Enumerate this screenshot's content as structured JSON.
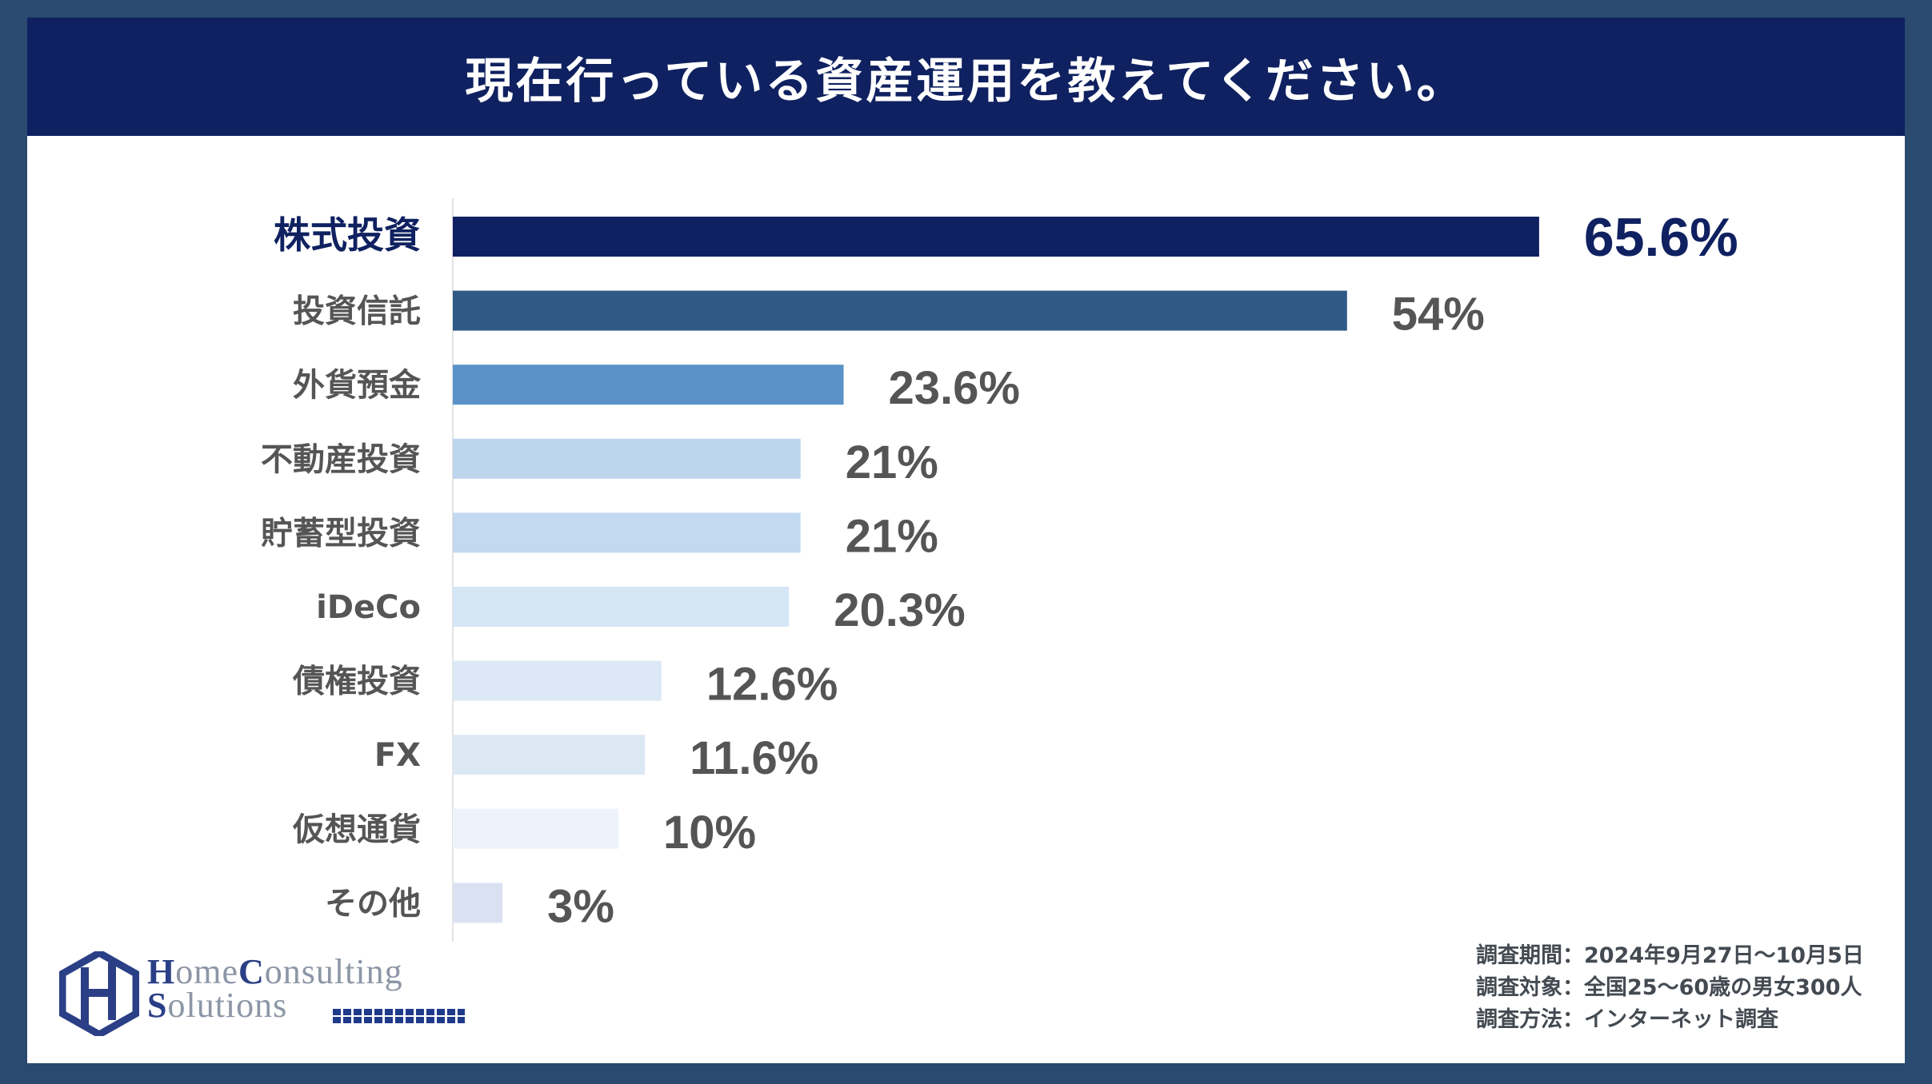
{
  "header": {
    "title": "現在行っている資産運用を教えてください。"
  },
  "chart_data": {
    "type": "bar",
    "orientation": "horizontal",
    "title": "現在行っている資産運用を教えてください。",
    "xlim": [
      0,
      100
    ],
    "grid": false,
    "legend": "none",
    "categories": [
      "株式投資",
      "投資信託",
      "外貨預金",
      "不動産投資",
      "貯蓄型投資",
      "iDeCo",
      "債権投資",
      "FX",
      "仮想通貨",
      "その他"
    ],
    "values": [
      65.6,
      54,
      23.6,
      21,
      21,
      20.3,
      12.6,
      11.6,
      10,
      3
    ],
    "value_labels": [
      "65.6%",
      "54%",
      "23.6%",
      "21%",
      "21%",
      "20.3%",
      "12.6%",
      "11.6%",
      "10%",
      "3%"
    ],
    "bar_colors": [
      "#0f2160",
      "#2f5a86",
      "#5a92c8",
      "#bdd6ee",
      "#c2d9f0",
      "#d5e6f5",
      "#dce8f5",
      "#dde8f5",
      "#eef3fb",
      "#dae2f2"
    ],
    "highlight_color": "#0f2160",
    "label_color": "#555555"
  },
  "notes": [
    "調査期間：2024年9月27日〜10月5日",
    "調査対象：全国25〜60歳の男女300人",
    "調査方法：インターネット調査"
  ],
  "logo": {
    "line1_cap1": "H",
    "line1_rest1": "ome",
    "line1_cap2": "C",
    "line1_rest2": "onsulting",
    "line2_cap": "S",
    "line2_rest": "olutions"
  }
}
